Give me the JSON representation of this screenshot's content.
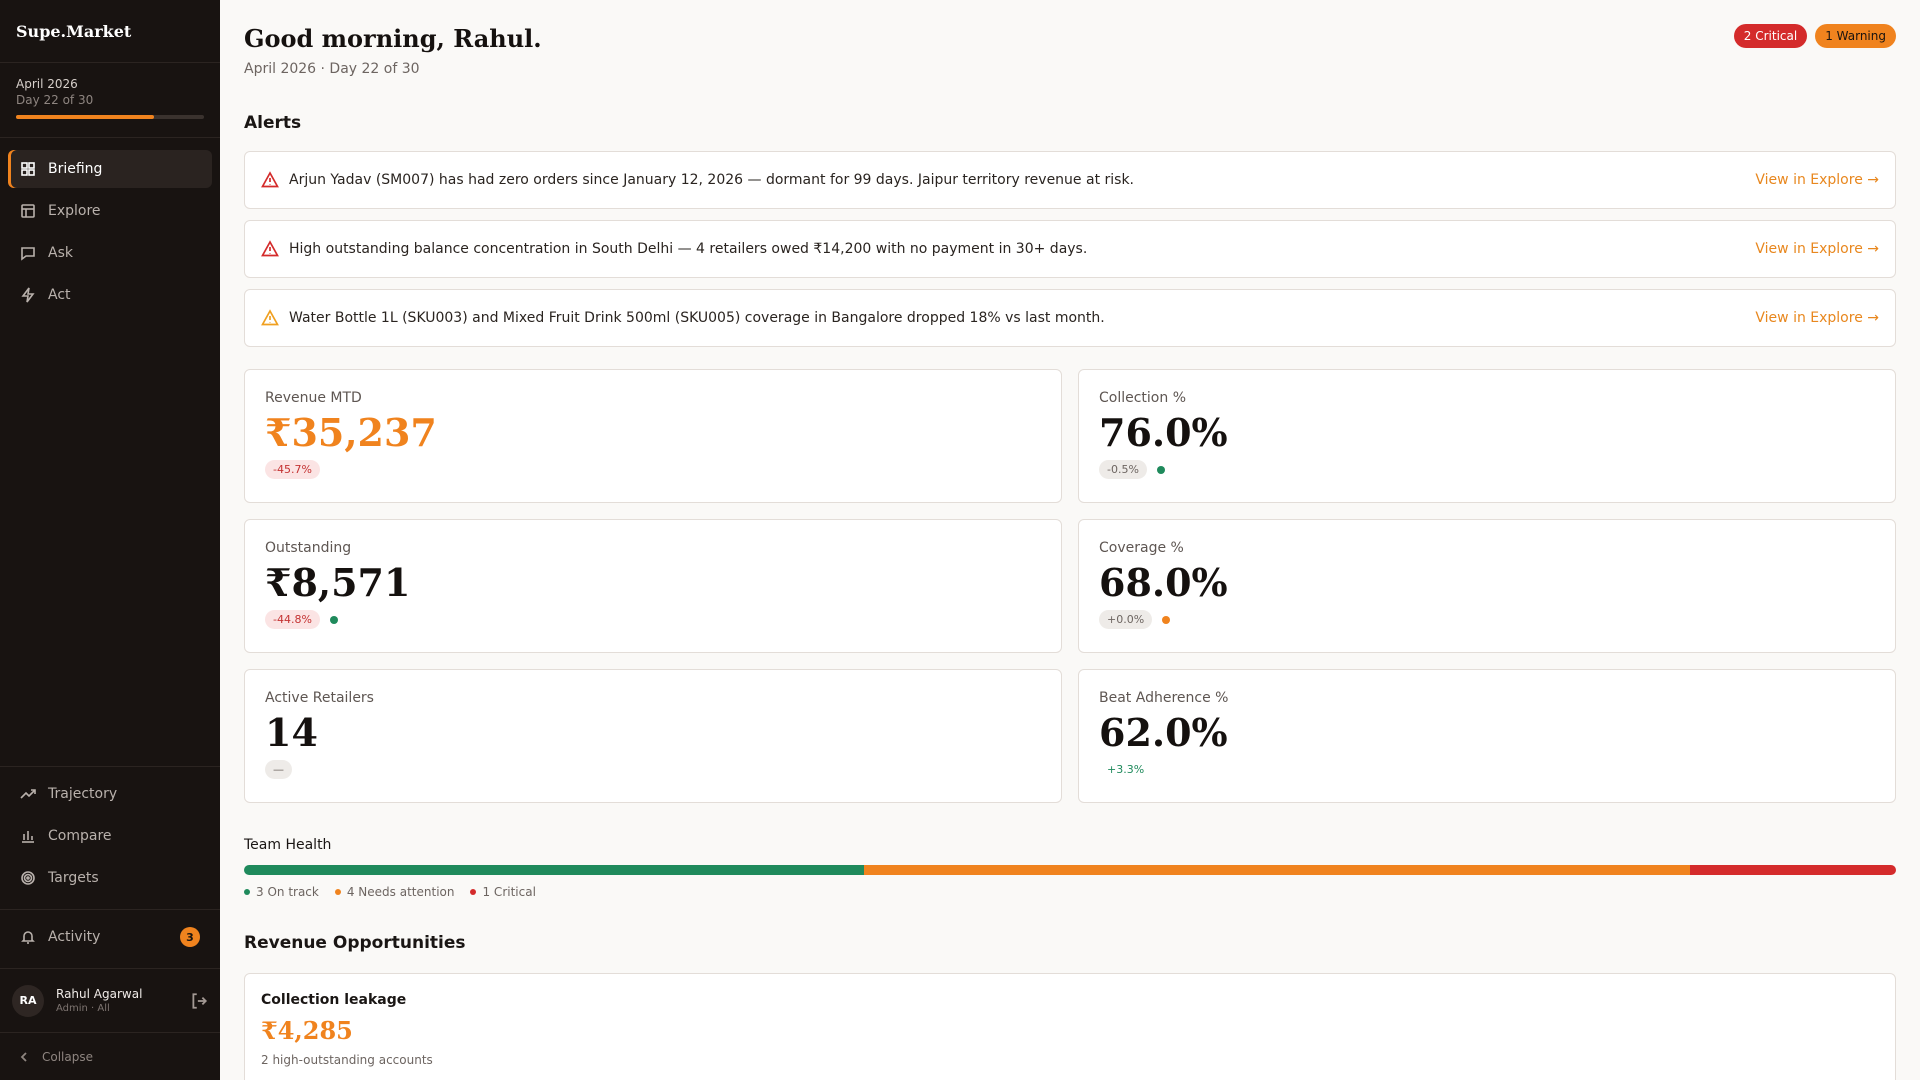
{
  "app": {
    "name": "Supe.Market"
  },
  "period": {
    "month": "April 2026",
    "day": "Day 22 of 30",
    "progress": 0.733
  },
  "nav": {
    "briefing": "Briefing",
    "explore": "Explore",
    "ask": "Ask",
    "act": "Act",
    "trajectory": "Trajectory",
    "compare": "Compare",
    "targets": "Targets",
    "activity": "Activity",
    "activity_count": "3"
  },
  "user": {
    "initials": "RA",
    "name": "Rahul Agarwal",
    "role": "Admin · All"
  },
  "collapse": "Collapse",
  "header": {
    "greeting": "Good morning, Rahul.",
    "subtitle": "April 2026 · Day 22 of 30",
    "critical": "2 Critical",
    "warning": "1 Warning"
  },
  "alerts": {
    "title": "Alerts",
    "items": [
      {
        "text": "Arjun Yadav (SM007) has had zero orders since January 12, 2026 — dormant for 99 days. Jaipur territory revenue at risk.",
        "link": "View in Explore →",
        "severity": "critical"
      },
      {
        "text": "High outstanding balance concentration in South Delhi — 4 retailers owed ₹14,200 with no payment in 30+ days.",
        "link": "View in Explore →",
        "severity": "critical"
      },
      {
        "text": "Water Bottle 1L (SKU003) and Mixed Fruit Drink 500ml (SKU005) coverage in Bangalore dropped 18% vs last month.",
        "link": "View in Explore →",
        "severity": "warning"
      }
    ]
  },
  "kpis": {
    "revenue": {
      "label": "Revenue MTD",
      "value": "₹35,237",
      "delta": "-45.7%"
    },
    "collection": {
      "label": "Collection %",
      "value": "76.0%",
      "delta": "-0.5%"
    },
    "outstanding": {
      "label": "Outstanding",
      "value": "₹8,571",
      "delta": "-44.8%"
    },
    "coverage": {
      "label": "Coverage %",
      "value": "68.0%",
      "delta": "+0.0%"
    },
    "retailers": {
      "label": "Active Retailers",
      "value": "14",
      "delta": "—"
    },
    "beat": {
      "label": "Beat Adherence %",
      "value": "62.0%",
      "delta": "+3.3%"
    }
  },
  "team_health": {
    "title": "Team Health",
    "on_track": 3,
    "needs_attention": 4,
    "critical": 1,
    "on_track_label": "3 On track",
    "needs_attention_label": "4 Needs attention",
    "critical_label": "1 Critical"
  },
  "revenue_opportunities": {
    "title": "Revenue Opportunities",
    "card": {
      "title": "Collection leakage",
      "value": "₹4,285",
      "subtitle": "2 high-outstanding accounts"
    }
  },
  "colors": {
    "accent": "#f0831e",
    "critical": "#d42b2b",
    "success": "#1f8a5c",
    "sidebar": "#181311"
  }
}
